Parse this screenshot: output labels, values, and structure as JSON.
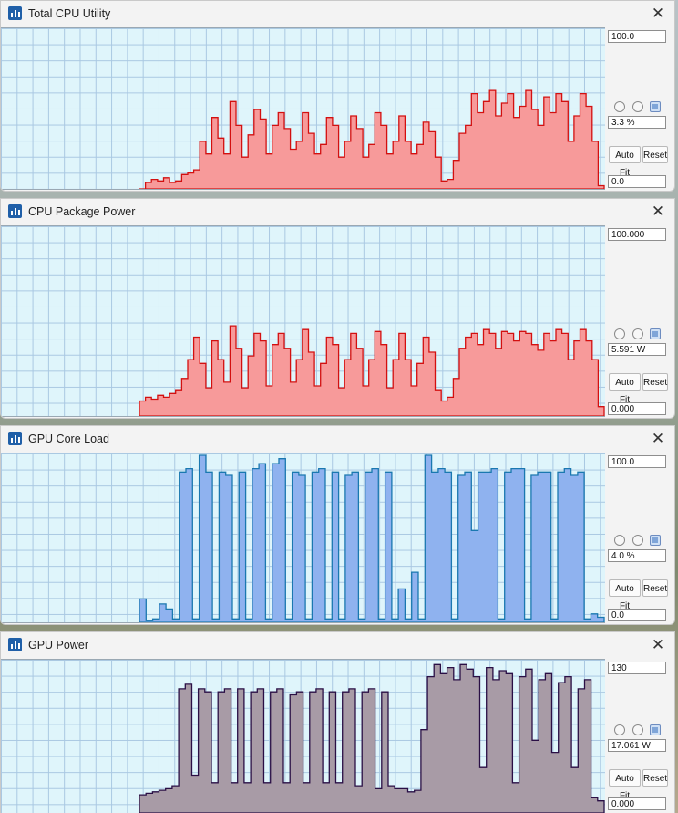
{
  "panels": [
    {
      "title": "Total CPU Utility",
      "max": "100.0",
      "current": "3.3 %",
      "min": "0.0",
      "auto_fit": "Auto Fit",
      "reset": "Reset",
      "fill": "#f79a9a",
      "stroke": "#d31010",
      "series": [
        0.0,
        0.04,
        0.06,
        0.05,
        0.07,
        0.04,
        0.05,
        0.09,
        0.1,
        0.12,
        0.3,
        0.22,
        0.45,
        0.32,
        0.22,
        0.55,
        0.4,
        0.2,
        0.34,
        0.5,
        0.44,
        0.22,
        0.4,
        0.48,
        0.38,
        0.25,
        0.3,
        0.48,
        0.35,
        0.22,
        0.28,
        0.45,
        0.4,
        0.2,
        0.3,
        0.46,
        0.38,
        0.2,
        0.28,
        0.48,
        0.4,
        0.22,
        0.3,
        0.46,
        0.3,
        0.22,
        0.28,
        0.42,
        0.36,
        0.2,
        0.05,
        0.06,
        0.18,
        0.35,
        0.4,
        0.6,
        0.48,
        0.55,
        0.62,
        0.46,
        0.54,
        0.6,
        0.45,
        0.52,
        0.62,
        0.5,
        0.4,
        0.58,
        0.48,
        0.6,
        0.55,
        0.3,
        0.46,
        0.6,
        0.52,
        0.3,
        0.02
      ]
    },
    {
      "title": "CPU Package Power",
      "max": "100.000",
      "current": "5.591 W",
      "min": "0.000",
      "auto_fit": "Auto Fit",
      "reset": "Reset",
      "fill": "#f79a9a",
      "stroke": "#d31010",
      "series": [
        0.08,
        0.1,
        0.09,
        0.11,
        0.1,
        0.12,
        0.14,
        0.2,
        0.3,
        0.42,
        0.28,
        0.15,
        0.4,
        0.3,
        0.18,
        0.48,
        0.36,
        0.15,
        0.32,
        0.44,
        0.4,
        0.16,
        0.38,
        0.44,
        0.36,
        0.18,
        0.3,
        0.46,
        0.34,
        0.16,
        0.28,
        0.42,
        0.38,
        0.15,
        0.3,
        0.44,
        0.36,
        0.16,
        0.3,
        0.45,
        0.38,
        0.15,
        0.3,
        0.44,
        0.3,
        0.16,
        0.28,
        0.42,
        0.34,
        0.14,
        0.08,
        0.1,
        0.2,
        0.36,
        0.42,
        0.44,
        0.38,
        0.46,
        0.44,
        0.36,
        0.45,
        0.44,
        0.4,
        0.45,
        0.44,
        0.38,
        0.35,
        0.44,
        0.4,
        0.46,
        0.44,
        0.3,
        0.4,
        0.46,
        0.4,
        0.3,
        0.05
      ]
    },
    {
      "title": "GPU Core Load",
      "max": "100.0",
      "current": "4.0 %",
      "min": "0.0",
      "auto_fit": "Auto Fit",
      "reset": "Reset",
      "fill": "#8fb2ef",
      "stroke": "#1a78b0",
      "series": [
        0.14,
        0.01,
        0.02,
        0.11,
        0.08,
        0.02,
        0.9,
        0.92,
        0.02,
        1.0,
        0.9,
        0.02,
        0.9,
        0.88,
        0.02,
        0.9,
        0.02,
        0.92,
        0.95,
        0.02,
        0.95,
        0.98,
        0.02,
        0.9,
        0.88,
        0.02,
        0.9,
        0.92,
        0.02,
        0.9,
        0.02,
        0.88,
        0.9,
        0.02,
        0.9,
        0.92,
        0.02,
        0.9,
        0.02,
        0.2,
        0.02,
        0.3,
        0.02,
        1.0,
        0.9,
        0.92,
        0.9,
        0.02,
        0.88,
        0.9,
        0.55,
        0.9,
        0.9,
        0.92,
        0.02,
        0.9,
        0.92,
        0.92,
        0.02,
        0.88,
        0.9,
        0.9,
        0.02,
        0.9,
        0.92,
        0.88,
        0.9,
        0.02,
        0.05,
        0.03
      ]
    },
    {
      "title": "GPU Power",
      "max": "130",
      "current": "17.061 W",
      "min": "0.000",
      "auto_fit": "Auto Fit",
      "reset": "Reset",
      "fill": "#a89ba6",
      "stroke": "#2a0f45",
      "series": [
        0.12,
        0.13,
        0.14,
        0.15,
        0.16,
        0.18,
        0.82,
        0.85,
        0.25,
        0.82,
        0.8,
        0.2,
        0.8,
        0.82,
        0.2,
        0.82,
        0.2,
        0.8,
        0.82,
        0.2,
        0.8,
        0.82,
        0.2,
        0.78,
        0.8,
        0.2,
        0.8,
        0.82,
        0.2,
        0.8,
        0.2,
        0.8,
        0.82,
        0.18,
        0.8,
        0.82,
        0.16,
        0.8,
        0.18,
        0.16,
        0.16,
        0.14,
        0.15,
        0.55,
        0.9,
        0.98,
        0.92,
        0.96,
        0.88,
        0.98,
        0.95,
        0.9,
        0.3,
        0.96,
        0.88,
        0.94,
        0.92,
        0.2,
        0.9,
        0.95,
        0.48,
        0.88,
        0.92,
        0.4,
        0.86,
        0.9,
        0.3,
        0.82,
        0.88,
        0.1,
        0.08
      ]
    }
  ]
}
